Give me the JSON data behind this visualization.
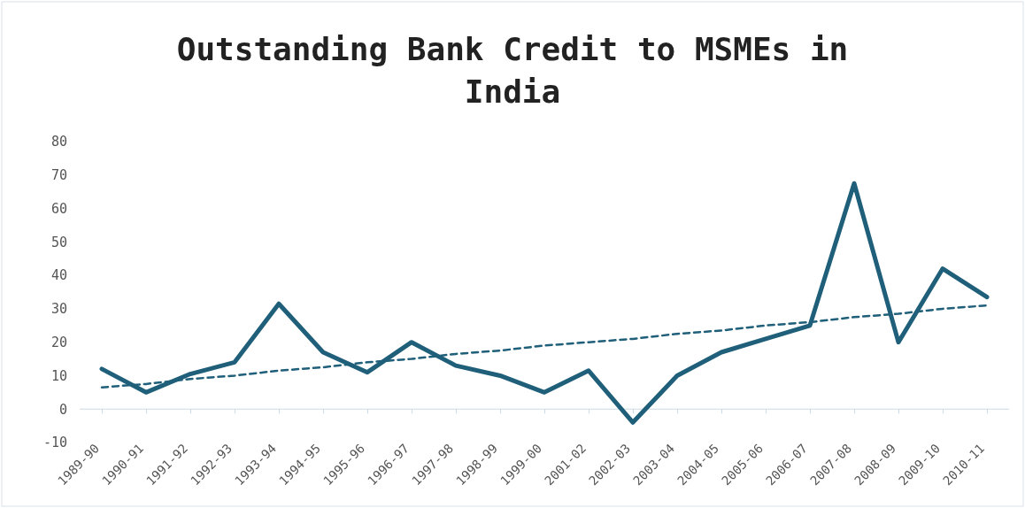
{
  "chart_data": {
    "type": "line",
    "title": "Outstanding Bank Credit to MSMEs in India",
    "categories": [
      "1989-90",
      "1990-91",
      "1991-92",
      "1992-93",
      "1993-94",
      "1994-95",
      "1995-96",
      "1996-97",
      "1997-98",
      "1998-99",
      "1999-00",
      "2001-02",
      "2002-03",
      "2003-04",
      "2004-05",
      "2005-06",
      "2006-07",
      "2007-08",
      "2008-09",
      "2009-10",
      "2010-11"
    ],
    "series": [
      {
        "color": "#1f5f7a",
        "values": [
          12,
          5,
          10.5,
          14,
          31.5,
          17,
          11,
          20,
          13,
          10,
          5,
          11.5,
          -4,
          10,
          17,
          21,
          25,
          67.5,
          20,
          42,
          33.5
        ]
      },
      {
        "type": "line",
        "line_style": "dashed",
        "color": "#1f5f7a",
        "values": [
          6.5,
          7.5,
          9,
          10,
          11.5,
          12.5,
          14,
          15,
          16.5,
          17.5,
          19,
          20,
          21,
          22.5,
          23.5,
          25,
          26,
          27.5,
          28.5,
          30,
          31
        ]
      }
    ],
    "ylim": [
      -10,
      80
    ],
    "yticks": [
      -10,
      0,
      10,
      20,
      30,
      40,
      50,
      60,
      70,
      80
    ],
    "grid": false,
    "marker": "none",
    "line_style": "solid"
  }
}
